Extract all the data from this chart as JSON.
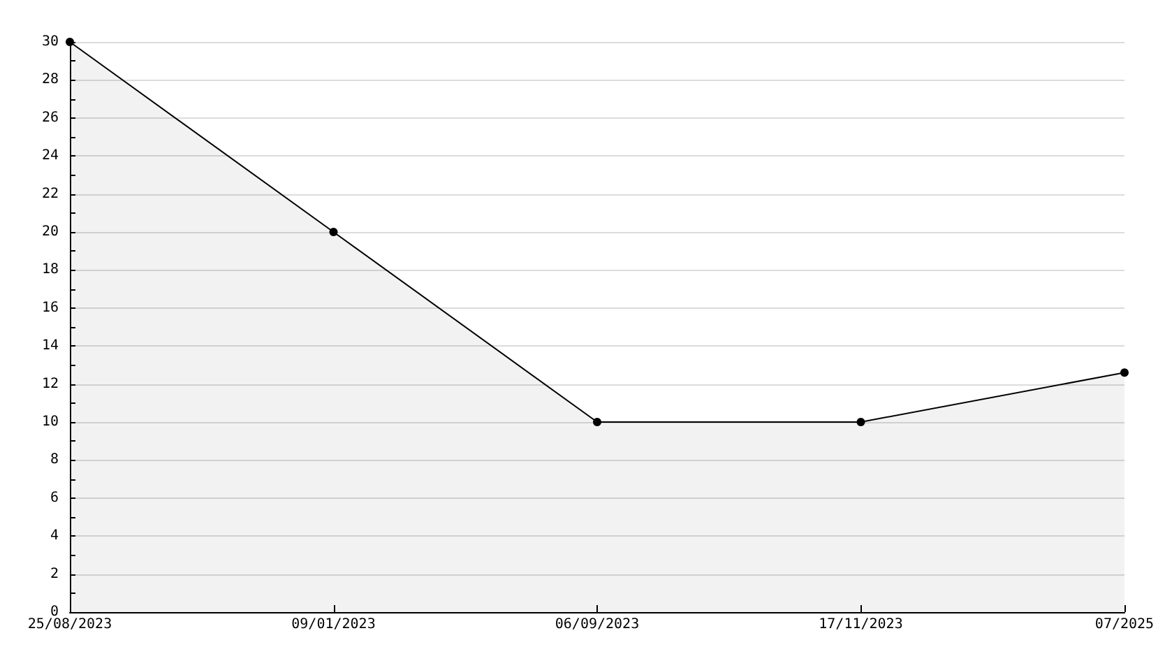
{
  "chart_data": {
    "type": "area",
    "categories": [
      "25/08/2023",
      "09/01/2023",
      "06/09/2023",
      "17/11/2023",
      "07/2025"
    ],
    "series": [
      {
        "color": "#000000",
        "values": [
          30,
          20,
          10,
          10,
          12.6
        ]
      }
    ],
    "ylim": [
      0,
      30
    ],
    "yticks": [
      0,
      {
        "value": 1,
        "label": null
      },
      2,
      {
        "value": 3,
        "label": null
      },
      4,
      {
        "value": 5,
        "label": null
      },
      6,
      {
        "value": 7,
        "label": null
      },
      8,
      {
        "value": 9,
        "label": null
      },
      10,
      {
        "value": 11,
        "label": null
      },
      12,
      {
        "value": 13,
        "label": null
      },
      14,
      {
        "value": 15,
        "label": null
      },
      16,
      {
        "value": 17,
        "label": null
      },
      18,
      {
        "value": 19,
        "label": null
      },
      20,
      {
        "value": 21,
        "label": null
      },
      22,
      {
        "value": 23,
        "label": null
      },
      24,
      {
        "value": 25,
        "label": null
      },
      26,
      {
        "value": 27,
        "label": null
      },
      28,
      {
        "value": 29,
        "label": null
      },
      30
    ],
    "grid": "y",
    "marker": "circle",
    "line_style": "solid"
  }
}
